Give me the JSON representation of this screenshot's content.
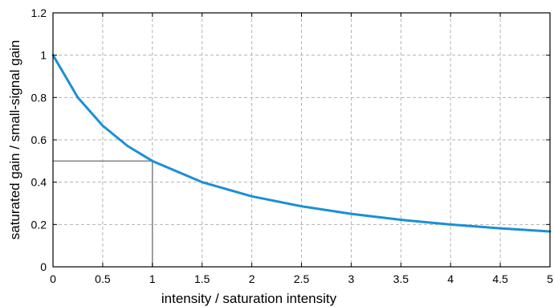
{
  "chart_data": {
    "type": "line",
    "title": "",
    "xlabel": "intensity / saturation intensity",
    "ylabel": "saturated gain / small-signal gain",
    "xlim": [
      0,
      5
    ],
    "ylim": [
      0,
      1.2
    ],
    "x_ticks": [
      0,
      0.5,
      1,
      1.5,
      2,
      2.5,
      3,
      3.5,
      4,
      4.5,
      5
    ],
    "x_tick_labels": [
      "0",
      "0.5",
      "1",
      "1.5",
      "2",
      "2.5",
      "3",
      "3.5",
      "4",
      "4.5",
      "5"
    ],
    "y_ticks": [
      0,
      0.2,
      0.4,
      0.6,
      0.8,
      1,
      1.2
    ],
    "y_tick_labels": [
      "0",
      "0.2",
      "0.4",
      "0.6",
      "0.8",
      "1",
      "1.2"
    ],
    "grid": true,
    "grid_style": "dashed",
    "series": [
      {
        "color": "#1a8fd6",
        "x": [
          0,
          0.25,
          0.5,
          0.75,
          1,
          1.5,
          2,
          2.5,
          3,
          3.5,
          4,
          4.5,
          5
        ],
        "y": [
          1,
          0.8,
          0.667,
          0.571,
          0.5,
          0.4,
          0.333,
          0.286,
          0.25,
          0.222,
          0.2,
          0.182,
          0.167
        ]
      }
    ],
    "guide_lines": {
      "color": "#808080",
      "point": [
        1,
        0.5
      ]
    }
  }
}
